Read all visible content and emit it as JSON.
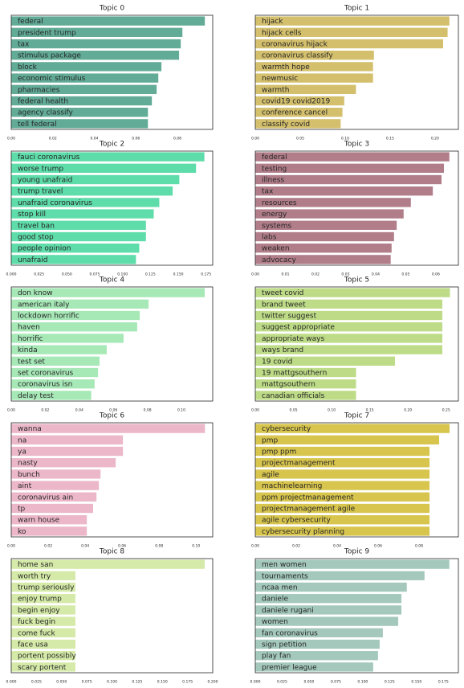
{
  "chart_data": [
    {
      "type": "barh",
      "title": "Topic 0",
      "color": "#62ab97",
      "xlim": [
        0,
        0.097
      ],
      "xticks": [
        {
          "value": 0,
          "label": "0.00"
        },
        0.02,
        0.04,
        0.06,
        0.08
      ],
      "categories": [
        "federal",
        "president trump",
        "tax",
        "stimulus package",
        "block",
        "economic stimulus",
        "pharmacies",
        "federal health",
        "agency classify",
        "tell federal"
      ],
      "values": [
        0.0932,
        0.0824,
        0.0816,
        0.0808,
        0.0723,
        0.0708,
        0.07,
        0.0677,
        0.0658,
        0.0658
      ]
    },
    {
      "type": "barh",
      "title": "Topic 1",
      "color": "#d3bf6c",
      "xlim": [
        0,
        0.226
      ],
      "xticks": [
        {
          "value": 0,
          "label": "0.00"
        },
        0.05,
        {
          "value": 0.1,
          "label": "0.10"
        },
        0.15,
        {
          "value": 0.2,
          "label": "0.20"
        }
      ],
      "categories": [
        "hijack",
        "hijack cells",
        "coronavirus hijack",
        "coronavirus classify",
        "warmth hope",
        "newmusic",
        "warmth",
        "covid19 covid2019",
        "conference cancel",
        "classify covid"
      ],
      "values": [
        0.216,
        0.214,
        0.209,
        0.132,
        0.131,
        0.131,
        0.112,
        0.099,
        0.097,
        0.095
      ]
    },
    {
      "type": "barh",
      "title": "Topic 2",
      "color": "#5edca9",
      "xlim": [
        0,
        0.181
      ],
      "xticks": [
        {
          "value": 0,
          "label": "0.000"
        },
        0.025,
        {
          "value": 0.05,
          "label": "0.050"
        },
        0.075,
        {
          "value": 0.1,
          "label": "0.100"
        },
        0.125,
        {
          "value": 0.15,
          "label": "0.150"
        },
        0.175
      ],
      "categories": [
        "fauci coronavirus",
        "worse trump",
        "young unafraid",
        "trump travel",
        "unafraid coronavirus",
        "stop kill",
        "travel ban",
        "good stop",
        "people opinion",
        "unafraid"
      ],
      "values": [
        0.1735,
        0.166,
        0.151,
        0.145,
        0.133,
        0.128,
        0.121,
        0.121,
        0.115,
        0.112
      ]
    },
    {
      "type": "barh",
      "title": "Topic 3",
      "color": "#b07d89",
      "xlim": [
        0,
        0.0675
      ],
      "xticks": [
        {
          "value": 0,
          "label": "0.00"
        },
        0.01,
        0.02,
        0.03,
        0.04,
        0.05,
        0.06
      ],
      "categories": [
        "federal",
        "testing",
        "illness",
        "tax",
        "resources",
        "energy",
        "systems",
        "labs",
        "weaken",
        "advocacy"
      ],
      "values": [
        0.0645,
        0.0627,
        0.0619,
        0.059,
        0.0517,
        0.0493,
        0.047,
        0.0461,
        0.0453,
        0.045
      ]
    },
    {
      "type": "barh",
      "title": "Topic 4",
      "color": "#a7e8b7",
      "xlim": [
        0,
        0.1184
      ],
      "xticks": [
        {
          "value": 0,
          "label": "0.00"
        },
        0.02,
        0.04,
        0.06,
        0.08,
        {
          "value": 0.1,
          "label": "0.10"
        }
      ],
      "categories": [
        "don know",
        "american italy",
        "lockdown horrific",
        "haven",
        "horrific",
        "kinda",
        "test set",
        "set coronavirus",
        "coronavirus isn",
        "delay test"
      ],
      "values": [
        0.1137,
        0.0807,
        0.0755,
        0.074,
        0.066,
        0.0561,
        0.0519,
        0.051,
        0.049,
        0.047
      ]
    },
    {
      "type": "barh",
      "title": "Topic 5",
      "color": "#bedc87",
      "xlim": [
        0,
        0.266
      ],
      "xticks": [
        {
          "value": 0,
          "label": "0.00"
        },
        0.05,
        {
          "value": 0.1,
          "label": "0.10"
        },
        0.15,
        {
          "value": 0.2,
          "label": "0.20"
        },
        0.25
      ],
      "categories": [
        "tweet covid",
        "brand tweet",
        "twitter suggest",
        "suggest appropriate",
        "appropriate ways",
        "ways brand",
        "19 covid",
        "19 mattgsouthern",
        "mattgsouthern",
        "canadian officials"
      ],
      "values": [
        0.255,
        0.245,
        0.245,
        0.245,
        0.245,
        0.245,
        0.183,
        0.132,
        0.132,
        0.132
      ]
    },
    {
      "type": "barh",
      "title": "Topic 6",
      "color": "#ebb7c9",
      "xlim": [
        0,
        0.109
      ],
      "xticks": [
        {
          "value": 0,
          "label": "0.00"
        },
        0.02,
        0.04,
        0.06,
        0.08,
        {
          "value": 0.1,
          "label": "0.10"
        }
      ],
      "categories": [
        "wanna",
        "na",
        "ya",
        "nasty",
        "bunch",
        "aint",
        "coronavirus ain",
        "tp",
        "warn house",
        "ko"
      ],
      "values": [
        0.1048,
        0.0604,
        0.0604,
        0.0565,
        0.0483,
        0.0474,
        0.0461,
        0.0443,
        0.0409,
        0.0409
      ]
    },
    {
      "type": "barh",
      "title": "Topic 7",
      "color": "#d8c54e",
      "xlim": [
        0,
        0.0992
      ],
      "xticks": [
        {
          "value": 0,
          "label": "0.00"
        },
        0.02,
        0.04,
        0.06,
        0.08
      ],
      "categories": [
        "cybersecurity",
        "pmp",
        "pmp ppm",
        "projectmanagement",
        "agile",
        "machinelearning",
        "ppm projectmanagement",
        "projectmanagement agile",
        "agile cybersecurity",
        "cybersecurity planning"
      ],
      "values": [
        0.0949,
        0.0898,
        0.0851,
        0.0851,
        0.0851,
        0.0851,
        0.0851,
        0.0851,
        0.0851,
        0.0851
      ]
    },
    {
      "type": "barh",
      "title": "Topic 8",
      "color": "#d5eaa8",
      "xlim": [
        0,
        0.2
      ],
      "xticks": [
        {
          "value": 0,
          "label": "0.000"
        },
        0.025,
        {
          "value": 0.05,
          "label": "0.050"
        },
        0.075,
        {
          "value": 0.1,
          "label": "0.100"
        },
        0.125,
        {
          "value": 0.15,
          "label": "0.150"
        },
        0.175,
        {
          "value": 0.2,
          "label": "0.200"
        }
      ],
      "categories": [
        "home san",
        "worth try",
        "trump seriously",
        "enjoy trump",
        "begin enjoy",
        "fuck begin",
        "come fuck",
        "face usa",
        "portent possibly",
        "scary portent"
      ],
      "values": [
        0.192,
        0.0637,
        0.0637,
        0.0637,
        0.0637,
        0.0637,
        0.0637,
        0.0637,
        0.0637,
        0.0637
      ]
    },
    {
      "type": "barh",
      "title": "Topic 9",
      "color": "#a4c9bc",
      "xlim": [
        0,
        0.189
      ],
      "xticks": [
        {
          "value": 0,
          "label": "0.000"
        },
        0.025,
        {
          "value": 0.05,
          "label": "0.050"
        },
        0.075,
        {
          "value": 0.1,
          "label": "0.100"
        },
        0.125,
        {
          "value": 0.15,
          "label": "0.150"
        },
        0.175
      ],
      "categories": [
        "men women",
        "tournaments",
        "ncaa men",
        "daniele",
        "daniele rugani",
        "women",
        "fan coronavirus",
        "sign petition",
        "play fan",
        "premier league"
      ],
      "values": [
        0.1806,
        0.1575,
        0.141,
        0.136,
        0.136,
        0.133,
        0.1187,
        0.1157,
        0.1142,
        0.1097
      ]
    }
  ]
}
